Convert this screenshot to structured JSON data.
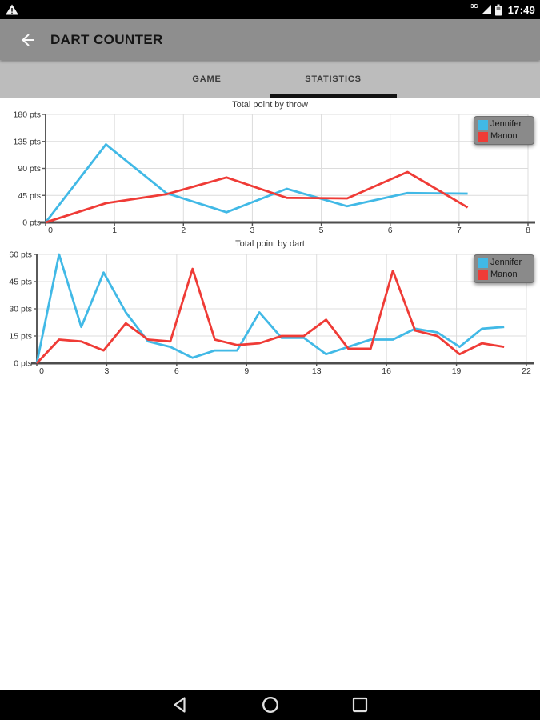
{
  "status_bar": {
    "time": "17:49",
    "network_label": "3G",
    "icons": [
      "warning-icon",
      "signal-icon",
      "battery-icon"
    ]
  },
  "app_bar": {
    "title": "DART COUNTER",
    "back_icon": "back-arrow-icon"
  },
  "tabs": [
    {
      "label": "GAME",
      "active": false
    },
    {
      "label": "STATISTICS",
      "active": true
    }
  ],
  "colors": {
    "jennifer_line": "#41B9E6",
    "manon_line": "#EF3B36",
    "app_bar_bg": "#8e8e8e",
    "tab_bar_bg": "#bcbcbc",
    "tab_indicator": "#121212",
    "legend_bg": "#8a8a8a",
    "gridline": "#dcdcdc",
    "axis_line": "#4d4d4d"
  },
  "chart_data": [
    {
      "type": "line",
      "title": "Total point by throw",
      "xlim": [
        0,
        8
      ],
      "ylim": [
        0,
        180
      ],
      "grid": true,
      "legend_position": "top-right",
      "x_tick_labels": [
        "0",
        "1",
        "2",
        "3",
        "5",
        "6",
        "7",
        "8"
      ],
      "y_ticks": [
        0,
        45,
        90,
        135,
        180
      ],
      "y_tick_labels": [
        "0 pts",
        "45 pts",
        "90 pts",
        "135 pts",
        "180 pts"
      ],
      "x": [
        0,
        1,
        2,
        3,
        4,
        5,
        6,
        7
      ],
      "series": [
        {
          "name": "Jennifer",
          "color": "#41B9E6",
          "values": [
            0,
            130,
            49,
            17,
            56,
            27,
            49,
            48
          ]
        },
        {
          "name": "Manon",
          "color": "#EF3B36",
          "values": [
            0,
            32,
            47,
            75,
            41,
            40,
            84,
            25
          ]
        }
      ]
    },
    {
      "type": "line",
      "title": "Total point by dart",
      "xlim": [
        0,
        22
      ],
      "ylim": [
        0,
        60
      ],
      "grid": true,
      "legend_position": "top-right",
      "x_tick_labels": [
        "0",
        "3",
        "6",
        "9",
        "13",
        "16",
        "19",
        "22"
      ],
      "y_ticks": [
        0,
        15,
        30,
        45,
        60
      ],
      "y_tick_labels": [
        "0 pts",
        "15 pts",
        "30 pts",
        "45 pts",
        "60 pts"
      ],
      "x": [
        0,
        1,
        2,
        3,
        4,
        5,
        6,
        7,
        8,
        9,
        10,
        11,
        12,
        13,
        14,
        15,
        16,
        17,
        18,
        19,
        20,
        21
      ],
      "series": [
        {
          "name": "Jennifer",
          "color": "#41B9E6",
          "values": [
            0,
            60,
            20,
            50,
            28,
            12,
            9,
            3,
            7,
            7,
            28,
            14,
            14,
            5,
            9,
            13,
            13,
            19,
            17,
            9,
            19,
            20
          ]
        },
        {
          "name": "Manon",
          "color": "#EF3B36",
          "values": [
            0,
            13,
            12,
            7,
            22,
            13,
            12,
            52,
            13,
            10,
            11,
            15,
            15,
            24,
            8,
            8,
            51,
            18,
            15,
            5,
            11,
            9
          ]
        }
      ]
    }
  ],
  "nav_bar": {
    "icons": [
      "back",
      "home",
      "recents"
    ]
  }
}
